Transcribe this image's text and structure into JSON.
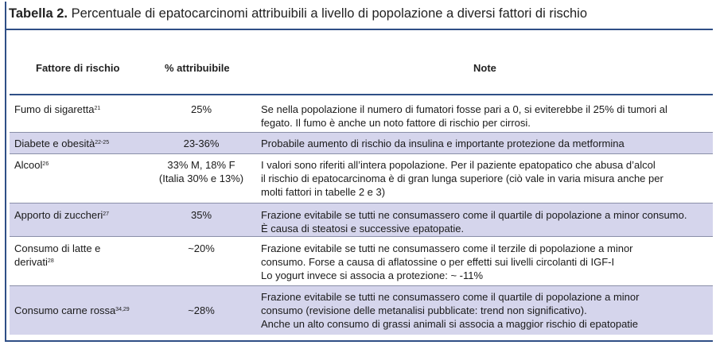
{
  "title": {
    "label": "Tabella 2.",
    "text": "Percentuale di epatocarcinomi attribuibili a livello di popolazione a diversi fattori di rischio"
  },
  "headers": {
    "factor": "Fattore di rischio",
    "percent": "% attribuibile",
    "notes": "Note"
  },
  "rows": [
    {
      "factor": "Fumo di sigaretta",
      "factor_sup": "21",
      "percent": "25%",
      "percent2": "",
      "note_lines": [
        "Se nella popolazione il numero di fumatori fosse pari a 0, si eviterebbe il 25% di tumori al",
        "fegato. Il fumo è anche un noto fattore di rischio per cirrosi."
      ]
    },
    {
      "factor": "Diabete e obesità",
      "factor_sup": "22-25",
      "percent": "23-36%",
      "percent2": "",
      "note_lines": [
        "Probabile aumento di rischio da insulina e importante protezione da metformina"
      ]
    },
    {
      "factor": "Alcool",
      "factor_sup": "26",
      "percent": "33% M,  18% F",
      "percent2": "(Italia 30% e 13%)",
      "note_lines": [
        "I valori sono riferiti all’intera popolazione. Per il paziente epatopatico che abusa d’alcol",
        "il rischio di epatocarcinoma è di gran lunga superiore (ciò vale in varia misura anche per",
        "molti fattori in tabelle 2 e 3)"
      ]
    },
    {
      "factor": "Apporto di zuccheri",
      "factor_sup": "27",
      "percent": "35%",
      "percent2": "",
      "note_lines": [
        "Frazione evitabile se tutti ne consumassero come il quartile di popolazione a minor consumo.",
        "È causa di steatosi e successive epatopatie."
      ]
    },
    {
      "factor_lines": [
        "Consumo di latte e",
        "derivati"
      ],
      "factor_sup": "28",
      "percent": "~20%",
      "percent2": "",
      "note_lines": [
        "Frazione evitabile se tutti ne consumassero come il terzile di popolazione a minor",
        "consumo. Forse a causa di aflatossine o per effetti sui livelli circolanti di IGF-I",
        "Lo yogurt invece si associa a protezione: ~ -11%"
      ]
    },
    {
      "factor": "Consumo carne rossa",
      "factor_sup": "34,29",
      "percent": "~28%",
      "percent2": "",
      "note_lines": [
        "Frazione evitabile se tutti ne consumassero come il quartile di popolazione a minor",
        "consumo  (revisione delle metanalisi pubblicate: trend non significativo).",
        "Anche un alto consumo di grassi animali si associa a maggior rischio di epatopatie"
      ]
    }
  ]
}
